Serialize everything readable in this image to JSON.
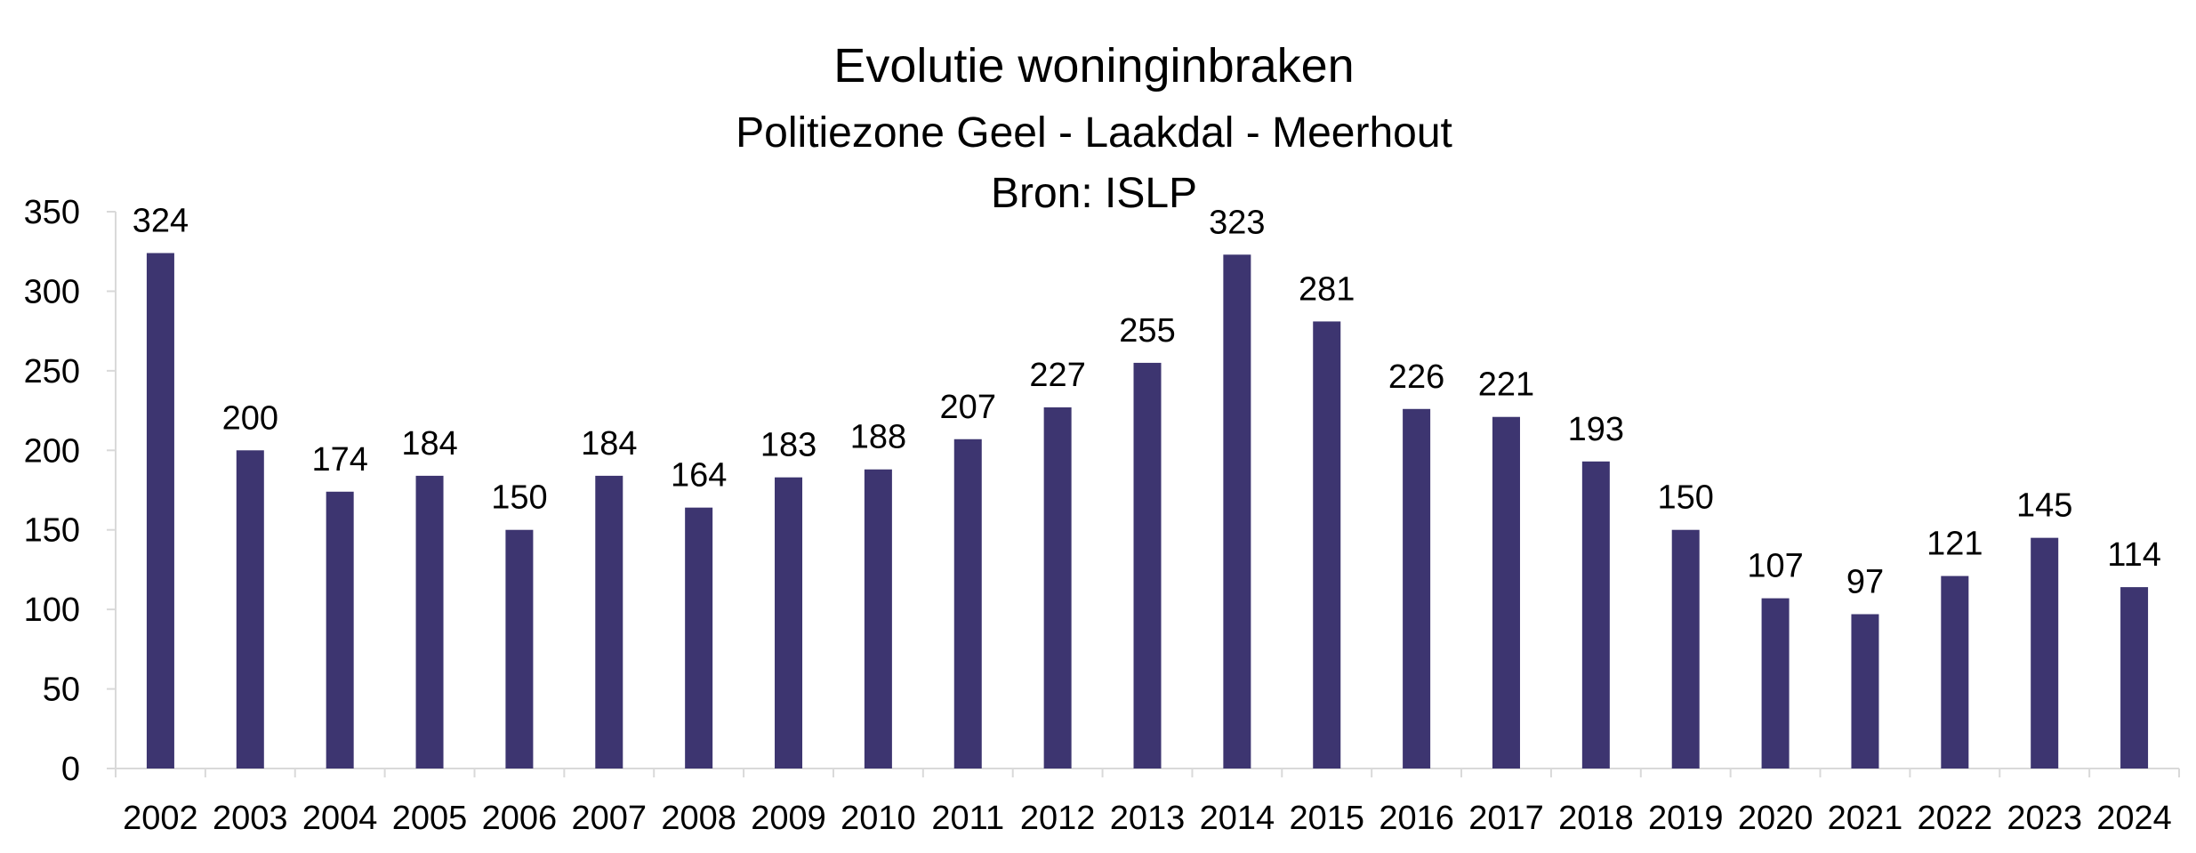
{
  "chart_data": {
    "type": "bar",
    "title": "Evolutie woninginbraken",
    "subtitle": "Politiezone Geel - Laakdal - Meerhout",
    "source": "Bron: ISLP",
    "categories": [
      "2002",
      "2003",
      "2004",
      "2005",
      "2006",
      "2007",
      "2008",
      "2009",
      "2010",
      "2011",
      "2012",
      "2013",
      "2014",
      "2015",
      "2016",
      "2017",
      "2018",
      "2019",
      "2020",
      "2021",
      "2022",
      "2023",
      "2024"
    ],
    "values": [
      324,
      200,
      174,
      184,
      150,
      184,
      164,
      183,
      188,
      207,
      227,
      255,
      323,
      281,
      226,
      221,
      193,
      150,
      107,
      97,
      121,
      145,
      114
    ],
    "ylim": [
      0,
      350
    ],
    "yticks": [
      0,
      50,
      100,
      150,
      200,
      250,
      300,
      350
    ],
    "xlabel": "",
    "ylabel": "",
    "grid": false,
    "legend": "none",
    "bar_color": "#3d3570",
    "data_labels": true
  }
}
